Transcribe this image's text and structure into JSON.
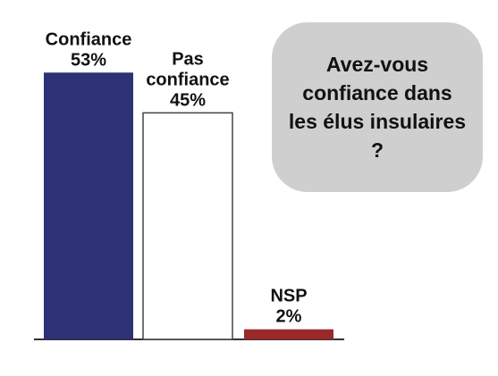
{
  "question": "Avez-vous confiance dans les élus insulaires ?",
  "colors": {
    "confiance": "#2c3274",
    "pas_confiance": "#ffffff",
    "nsp": "#9a2a2a",
    "bubble": "#cfcfcf",
    "axis": "#333333"
  },
  "chart_data": {
    "type": "bar",
    "categories": [
      "Confiance",
      "Pas confiance",
      "NSP"
    ],
    "values": [
      53,
      45,
      2
    ],
    "labels": [
      [
        "Confiance",
        "53%"
      ],
      [
        "Pas",
        "confiance",
        "45%"
      ],
      [
        "NSP",
        "2%"
      ]
    ],
    "unit": "%",
    "ylim": [
      0,
      55
    ],
    "grid": false,
    "legend": "none"
  }
}
